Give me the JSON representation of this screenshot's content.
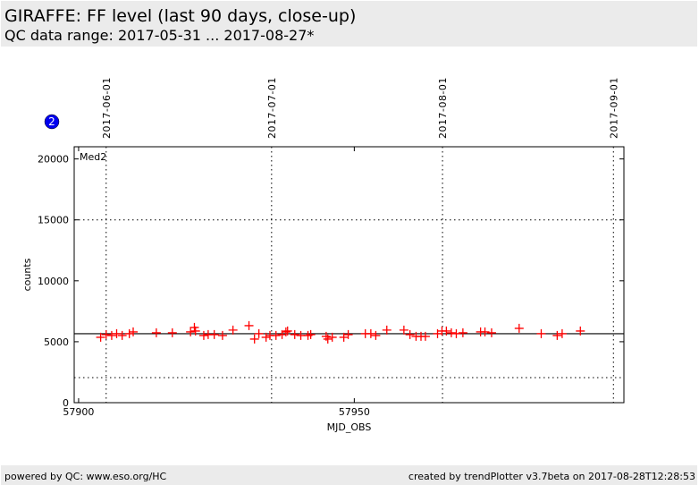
{
  "header": {
    "title": "GIRAFFE: FF level (last 90 days, close-up)",
    "subtitle": "QC data range: 2017-05-31 ... 2017-08-27*"
  },
  "footer": {
    "left": "powered by QC: www.eso.org/HC",
    "right": "created by trendPlotter v3.7beta on 2017-08-28T12:28:53"
  },
  "badge": "2",
  "chart_data": {
    "type": "scatter",
    "xlabel": "MJD_OBS",
    "ylabel": "counts",
    "xlim": [
      57899.2,
      57998.9
    ],
    "ylim": [
      0,
      21000
    ],
    "xticks": [
      {
        "v": 57900,
        "label": "57900"
      },
      {
        "v": 57950,
        "label": "57950"
      }
    ],
    "yticks": [
      {
        "v": 0,
        "label": "0"
      },
      {
        "v": 5000,
        "label": "5000"
      },
      {
        "v": 10000,
        "label": "10000"
      },
      {
        "v": 15000,
        "label": "15000"
      },
      {
        "v": 20000,
        "label": "20000"
      }
    ],
    "date_lines": [
      {
        "v": 57905,
        "label": "2017-06-01"
      },
      {
        "v": 57935,
        "label": "2017-07-01"
      },
      {
        "v": 57966,
        "label": "2017-08-01"
      },
      {
        "v": 57997,
        "label": "2017-09-01"
      }
    ],
    "median_line": 5660,
    "limit_lines": [
      2060,
      15000
    ],
    "annotation": "Med2",
    "marker_color": "#ff0000",
    "series": [
      {
        "name": "Med2",
        "points": [
          [
            57904.0,
            5366
          ],
          [
            57905.0,
            5586
          ],
          [
            57906.0,
            5513
          ],
          [
            57906.9,
            5660
          ],
          [
            57907.9,
            5513
          ],
          [
            57909.2,
            5660
          ],
          [
            57909.9,
            5807
          ],
          [
            57914.1,
            5733
          ],
          [
            57917.0,
            5733
          ],
          [
            57920.3,
            5807
          ],
          [
            57921.0,
            6174
          ],
          [
            57921.2,
            5880
          ],
          [
            57922.7,
            5513
          ],
          [
            57923.5,
            5586
          ],
          [
            57924.6,
            5586
          ],
          [
            57926.1,
            5513
          ],
          [
            57928.0,
            5954
          ],
          [
            57930.9,
            6321
          ],
          [
            57931.9,
            5219
          ],
          [
            57932.7,
            5660
          ],
          [
            57934.0,
            5366
          ],
          [
            57934.7,
            5513
          ],
          [
            57935.8,
            5513
          ],
          [
            57936.9,
            5586
          ],
          [
            57937.6,
            5807
          ],
          [
            57937.9,
            5880
          ],
          [
            57939.2,
            5586
          ],
          [
            57940.3,
            5513
          ],
          [
            57941.6,
            5513
          ],
          [
            57942.1,
            5586
          ],
          [
            57944.9,
            5439
          ],
          [
            57945.2,
            5219
          ],
          [
            57946.0,
            5366
          ],
          [
            57948.1,
            5366
          ],
          [
            57948.9,
            5586
          ],
          [
            57952.0,
            5660
          ],
          [
            57953.0,
            5660
          ],
          [
            57953.9,
            5513
          ],
          [
            57955.9,
            5954
          ],
          [
            57959.0,
            5954
          ],
          [
            57960.1,
            5586
          ],
          [
            57961.2,
            5439
          ],
          [
            57962.1,
            5439
          ],
          [
            57962.9,
            5439
          ],
          [
            57965.1,
            5660
          ],
          [
            57965.9,
            5880
          ],
          [
            57966.7,
            5880
          ],
          [
            57967.6,
            5733
          ],
          [
            57968.5,
            5660
          ],
          [
            57969.7,
            5733
          ],
          [
            57972.9,
            5807
          ],
          [
            57973.7,
            5807
          ],
          [
            57974.9,
            5733
          ],
          [
            57979.9,
            6100
          ],
          [
            57983.9,
            5660
          ],
          [
            57986.8,
            5513
          ],
          [
            57987.7,
            5660
          ],
          [
            57991.0,
            5880
          ]
        ]
      }
    ]
  }
}
